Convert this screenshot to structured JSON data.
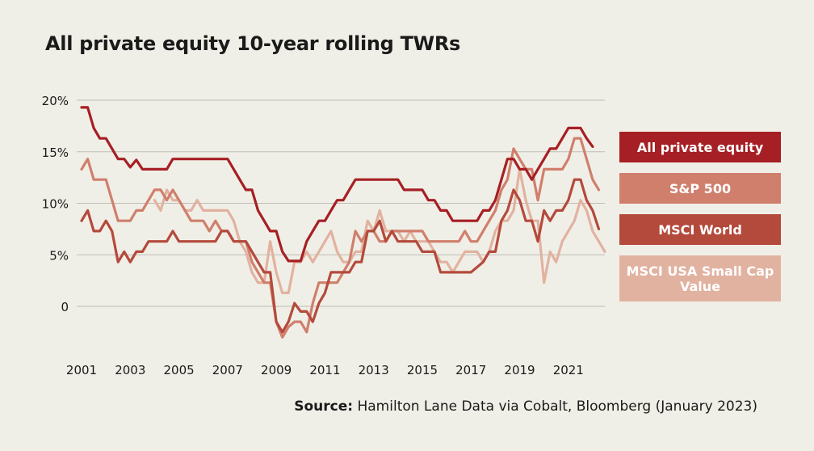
{
  "title": "All private equity 10-year rolling TWRs",
  "source": {
    "label": "Source:",
    "text": "Hamilton Lane Data via Cobalt, Bloomberg (January 2023)"
  },
  "colors": {
    "background": "#f0efe7",
    "grid": "#bdbdb5",
    "all_private_equity": "#a61f24",
    "sp500": "#d07f6c",
    "msci_world": "#b44a3c",
    "msci_usa_small_cap_value": "#e2b2a0"
  },
  "chart_data": {
    "type": "line",
    "title": "All private equity 10-year rolling TWRs",
    "xlabel": "",
    "ylabel": "",
    "x_ticks": [
      "2001",
      "2003",
      "2005",
      "2007",
      "2009",
      "2011",
      "2013",
      "2015",
      "2017",
      "2019",
      "2021"
    ],
    "y_ticks": [
      "20%",
      "15%",
      "10%",
      "5%",
      "0"
    ],
    "y_tick_values": [
      20,
      15,
      10,
      5,
      0
    ],
    "xlim": [
      2000.8,
      2022.2
    ],
    "ylim": [
      -4,
      20
    ],
    "grid": true,
    "legend_position": "right",
    "series": [
      {
        "name": "All private equity",
        "color": "#a61f24",
        "points": [
          [
            2001.0,
            19.3
          ],
          [
            2001.25,
            19.3
          ],
          [
            2001.5,
            17.3
          ],
          [
            2001.75,
            16.3
          ],
          [
            2002.0,
            16.3
          ],
          [
            2002.25,
            15.3
          ],
          [
            2002.5,
            14.3
          ],
          [
            2002.75,
            14.3
          ],
          [
            2003.0,
            13.5
          ],
          [
            2003.25,
            14.2
          ],
          [
            2003.5,
            13.3
          ],
          [
            2004.0,
            13.3
          ],
          [
            2004.5,
            13.3
          ],
          [
            2004.75,
            14.3
          ],
          [
            2005.0,
            14.3
          ],
          [
            2007.0,
            14.3
          ],
          [
            2007.25,
            13.3
          ],
          [
            2007.5,
            12.3
          ],
          [
            2007.75,
            11.3
          ],
          [
            2008.0,
            11.3
          ],
          [
            2008.25,
            9.3
          ],
          [
            2008.5,
            8.3
          ],
          [
            2008.75,
            7.3
          ],
          [
            2009.0,
            7.3
          ],
          [
            2009.25,
            5.3
          ],
          [
            2009.5,
            4.4
          ],
          [
            2010.0,
            4.4
          ],
          [
            2010.25,
            6.3
          ],
          [
            2010.5,
            7.3
          ],
          [
            2010.75,
            8.3
          ],
          [
            2011.0,
            8.3
          ],
          [
            2011.25,
            9.3
          ],
          [
            2011.5,
            10.3
          ],
          [
            2011.75,
            10.3
          ],
          [
            2012.0,
            11.3
          ],
          [
            2012.25,
            12.3
          ],
          [
            2014.0,
            12.3
          ],
          [
            2014.25,
            11.3
          ],
          [
            2015.0,
            11.3
          ],
          [
            2015.25,
            10.3
          ],
          [
            2015.5,
            10.3
          ],
          [
            2015.75,
            9.3
          ],
          [
            2016.0,
            9.3
          ],
          [
            2016.25,
            8.3
          ],
          [
            2017.25,
            8.3
          ],
          [
            2017.5,
            9.3
          ],
          [
            2017.75,
            9.3
          ],
          [
            2018.0,
            10.3
          ],
          [
            2018.25,
            12.3
          ],
          [
            2018.5,
            14.3
          ],
          [
            2018.75,
            14.3
          ],
          [
            2019.0,
            13.3
          ],
          [
            2019.25,
            13.3
          ],
          [
            2019.5,
            12.3
          ],
          [
            2019.75,
            13.3
          ],
          [
            2020.0,
            14.3
          ],
          [
            2020.25,
            15.3
          ],
          [
            2020.5,
            15.3
          ],
          [
            2020.75,
            16.3
          ],
          [
            2021.0,
            17.3
          ],
          [
            2021.5,
            17.3
          ],
          [
            2021.75,
            16.3
          ],
          [
            2022.0,
            15.5
          ]
        ]
      },
      {
        "name": "S&P 500",
        "color": "#d07f6c",
        "points": [
          [
            2001.0,
            13.3
          ],
          [
            2001.25,
            14.3
          ],
          [
            2001.5,
            12.3
          ],
          [
            2002.0,
            12.3
          ],
          [
            2002.25,
            10.3
          ],
          [
            2002.5,
            8.3
          ],
          [
            2003.0,
            8.3
          ],
          [
            2003.25,
            9.3
          ],
          [
            2003.5,
            9.3
          ],
          [
            2003.75,
            10.3
          ],
          [
            2004.0,
            11.3
          ],
          [
            2004.25,
            11.3
          ],
          [
            2004.5,
            10.3
          ],
          [
            2004.75,
            11.3
          ],
          [
            2005.0,
            10.3
          ],
          [
            2005.25,
            9.3
          ],
          [
            2005.5,
            8.3
          ],
          [
            2006.0,
            8.3
          ],
          [
            2006.25,
            7.3
          ],
          [
            2006.5,
            8.3
          ],
          [
            2006.75,
            7.3
          ],
          [
            2007.0,
            7.3
          ],
          [
            2007.25,
            6.3
          ],
          [
            2007.75,
            6.3
          ],
          [
            2008.0,
            4.3
          ],
          [
            2008.25,
            3.3
          ],
          [
            2008.5,
            2.3
          ],
          [
            2008.75,
            2.3
          ],
          [
            2009.0,
            -1.5
          ],
          [
            2009.25,
            -3.0
          ],
          [
            2009.5,
            -2.0
          ],
          [
            2009.75,
            -1.5
          ],
          [
            2010.0,
            -1.5
          ],
          [
            2010.25,
            -2.5
          ],
          [
            2010.5,
            0.3
          ],
          [
            2010.75,
            2.3
          ],
          [
            2011.0,
            2.3
          ],
          [
            2011.5,
            2.3
          ],
          [
            2011.75,
            3.3
          ],
          [
            2012.0,
            4.3
          ],
          [
            2012.25,
            7.3
          ],
          [
            2012.5,
            6.3
          ],
          [
            2012.75,
            7.3
          ],
          [
            2013.0,
            7.3
          ],
          [
            2013.25,
            6.3
          ],
          [
            2013.5,
            6.3
          ],
          [
            2013.75,
            7.3
          ],
          [
            2015.0,
            7.3
          ],
          [
            2015.25,
            6.3
          ],
          [
            2016.5,
            6.3
          ],
          [
            2016.75,
            7.3
          ],
          [
            2017.0,
            6.3
          ],
          [
            2017.25,
            6.3
          ],
          [
            2017.5,
            7.3
          ],
          [
            2017.75,
            8.3
          ],
          [
            2018.0,
            9.3
          ],
          [
            2018.25,
            11.3
          ],
          [
            2018.5,
            12.3
          ],
          [
            2018.75,
            15.3
          ],
          [
            2019.0,
            14.3
          ],
          [
            2019.25,
            13.3
          ],
          [
            2019.5,
            13.3
          ],
          [
            2019.75,
            10.3
          ],
          [
            2020.0,
            13.3
          ],
          [
            2020.75,
            13.3
          ],
          [
            2021.0,
            14.3
          ],
          [
            2021.25,
            16.3
          ],
          [
            2021.5,
            16.3
          ],
          [
            2021.75,
            14.3
          ],
          [
            2022.0,
            12.3
          ],
          [
            2022.25,
            11.3
          ]
        ]
      },
      {
        "name": "MSCI World",
        "color": "#b44a3c",
        "points": [
          [
            2001.0,
            8.3
          ],
          [
            2001.25,
            9.3
          ],
          [
            2001.5,
            7.3
          ],
          [
            2001.75,
            7.3
          ],
          [
            2002.0,
            8.3
          ],
          [
            2002.25,
            7.3
          ],
          [
            2002.5,
            4.3
          ],
          [
            2002.75,
            5.3
          ],
          [
            2003.0,
            4.3
          ],
          [
            2003.25,
            5.3
          ],
          [
            2003.5,
            5.3
          ],
          [
            2003.75,
            6.3
          ],
          [
            2004.5,
            6.3
          ],
          [
            2004.75,
            7.3
          ],
          [
            2005.0,
            6.3
          ],
          [
            2006.5,
            6.3
          ],
          [
            2006.75,
            7.3
          ],
          [
            2007.0,
            7.3
          ],
          [
            2007.25,
            6.3
          ],
          [
            2007.75,
            6.3
          ],
          [
            2008.0,
            5.3
          ],
          [
            2008.25,
            4.3
          ],
          [
            2008.5,
            3.3
          ],
          [
            2008.75,
            3.3
          ],
          [
            2009.0,
            -1.5
          ],
          [
            2009.25,
            -2.5
          ],
          [
            2009.5,
            -1.5
          ],
          [
            2009.75,
            0.3
          ],
          [
            2010.0,
            -0.5
          ],
          [
            2010.25,
            -0.5
          ],
          [
            2010.5,
            -1.5
          ],
          [
            2010.75,
            0.3
          ],
          [
            2011.0,
            1.3
          ],
          [
            2011.25,
            3.3
          ],
          [
            2012.0,
            3.3
          ],
          [
            2012.25,
            4.3
          ],
          [
            2012.5,
            4.3
          ],
          [
            2012.75,
            7.3
          ],
          [
            2013.0,
            7.3
          ],
          [
            2013.25,
            8.3
          ],
          [
            2013.5,
            6.3
          ],
          [
            2013.75,
            7.3
          ],
          [
            2014.0,
            6.3
          ],
          [
            2014.5,
            6.3
          ],
          [
            2014.75,
            6.3
          ],
          [
            2015.0,
            5.3
          ],
          [
            2015.5,
            5.3
          ],
          [
            2015.75,
            3.3
          ],
          [
            2016.0,
            3.3
          ],
          [
            2017.0,
            3.3
          ],
          [
            2017.5,
            4.3
          ],
          [
            2017.75,
            5.3
          ],
          [
            2018.0,
            5.3
          ],
          [
            2018.25,
            8.3
          ],
          [
            2018.5,
            9.3
          ],
          [
            2018.75,
            11.3
          ],
          [
            2019.0,
            10.3
          ],
          [
            2019.25,
            8.3
          ],
          [
            2019.5,
            8.3
          ],
          [
            2019.75,
            6.3
          ],
          [
            2020.0,
            9.3
          ],
          [
            2020.25,
            8.3
          ],
          [
            2020.5,
            9.3
          ],
          [
            2020.75,
            9.3
          ],
          [
            2021.0,
            10.3
          ],
          [
            2021.25,
            12.3
          ],
          [
            2021.5,
            12.3
          ],
          [
            2021.75,
            10.3
          ],
          [
            2022.0,
            9.3
          ],
          [
            2022.25,
            7.5
          ]
        ]
      },
      {
        "name": "MSCI USA Small Cap Value",
        "color": "#e2b2a0",
        "points": [
          [
            2004.0,
            10.3
          ],
          [
            2004.25,
            9.3
          ],
          [
            2004.5,
            11.3
          ],
          [
            2004.75,
            10.3
          ],
          [
            2005.0,
            10.3
          ],
          [
            2005.25,
            9.3
          ],
          [
            2005.5,
            9.3
          ],
          [
            2005.75,
            10.3
          ],
          [
            2006.0,
            9.3
          ],
          [
            2007.0,
            9.3
          ],
          [
            2007.25,
            8.3
          ],
          [
            2007.5,
            6.3
          ],
          [
            2007.75,
            5.3
          ],
          [
            2008.0,
            3.3
          ],
          [
            2008.25,
            2.3
          ],
          [
            2008.5,
            2.3
          ],
          [
            2008.75,
            6.3
          ],
          [
            2009.0,
            3.3
          ],
          [
            2009.25,
            1.3
          ],
          [
            2009.5,
            1.3
          ],
          [
            2009.75,
            4.3
          ],
          [
            2010.0,
            4.3
          ],
          [
            2010.25,
            5.3
          ],
          [
            2010.5,
            4.3
          ],
          [
            2010.75,
            5.3
          ],
          [
            2011.0,
            6.3
          ],
          [
            2011.25,
            7.3
          ],
          [
            2011.5,
            5.3
          ],
          [
            2011.75,
            4.3
          ],
          [
            2012.0,
            4.3
          ],
          [
            2012.25,
            5.3
          ],
          [
            2012.5,
            5.3
          ],
          [
            2012.75,
            8.3
          ],
          [
            2013.0,
            7.3
          ],
          [
            2013.25,
            9.3
          ],
          [
            2013.5,
            7.3
          ],
          [
            2013.75,
            7.3
          ],
          [
            2014.0,
            7.3
          ],
          [
            2014.25,
            6.3
          ],
          [
            2014.5,
            7.3
          ],
          [
            2014.75,
            6.3
          ],
          [
            2015.25,
            6.3
          ],
          [
            2015.5,
            5.3
          ],
          [
            2015.75,
            4.3
          ],
          [
            2016.0,
            4.3
          ],
          [
            2016.25,
            3.3
          ],
          [
            2016.5,
            4.3
          ],
          [
            2016.75,
            5.3
          ],
          [
            2017.25,
            5.3
          ],
          [
            2017.5,
            4.3
          ],
          [
            2017.75,
            5.3
          ],
          [
            2018.0,
            7.3
          ],
          [
            2018.25,
            8.3
          ],
          [
            2018.5,
            8.3
          ],
          [
            2018.75,
            9.3
          ],
          [
            2019.0,
            13.3
          ],
          [
            2019.25,
            10.3
          ],
          [
            2019.5,
            8.3
          ],
          [
            2019.75,
            8.3
          ],
          [
            2020.0,
            2.3
          ],
          [
            2020.25,
            5.3
          ],
          [
            2020.5,
            4.3
          ],
          [
            2020.75,
            6.3
          ],
          [
            2021.0,
            7.3
          ],
          [
            2021.25,
            8.3
          ],
          [
            2021.5,
            10.3
          ],
          [
            2021.75,
            9.3
          ],
          [
            2022.0,
            7.3
          ],
          [
            2022.25,
            6.3
          ],
          [
            2022.5,
            5.3
          ]
        ]
      }
    ]
  }
}
